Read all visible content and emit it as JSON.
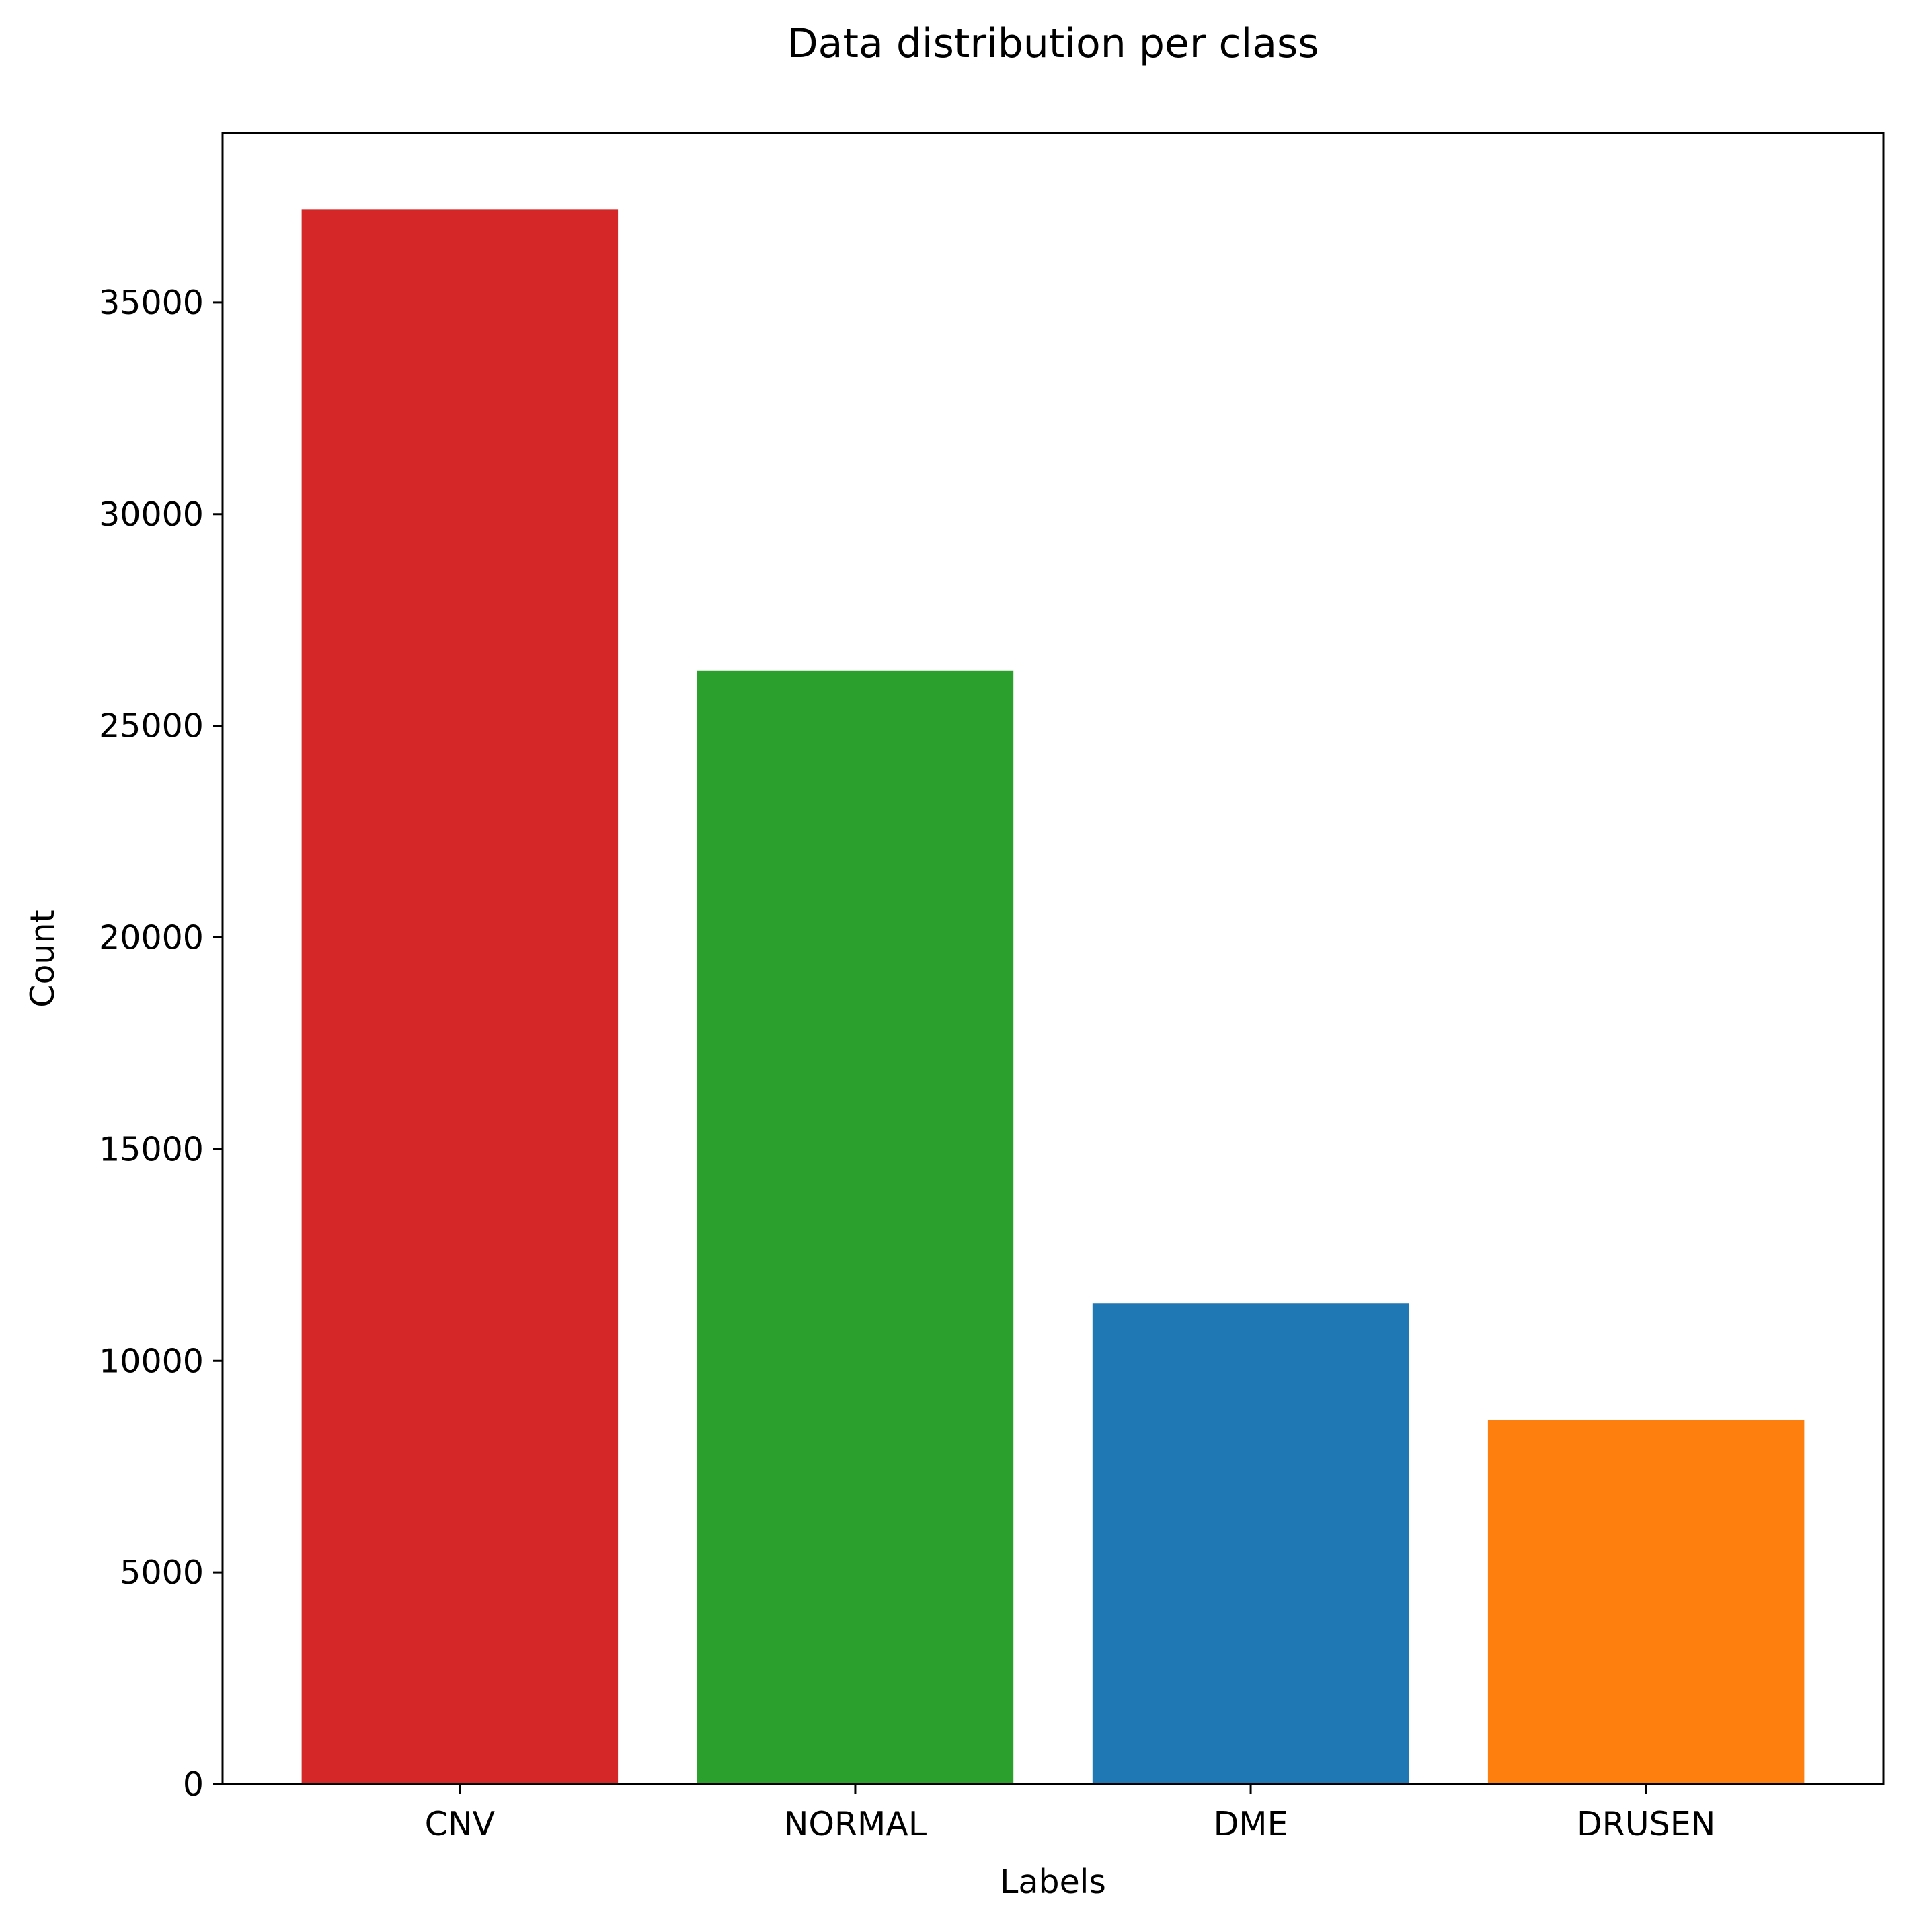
{
  "chart_data": {
    "type": "bar",
    "title": "Data distribution per class",
    "xlabel": "Labels",
    "ylabel": "Count",
    "categories": [
      "CNV",
      "NORMAL",
      "DME",
      "DRUSEN"
    ],
    "values": [
      37200,
      26300,
      11350,
      8600
    ],
    "colors": [
      "#d62728",
      "#2ca02c",
      "#1f77b4",
      "#ff7f0e"
    ],
    "ylim": [
      0,
      39000
    ],
    "yticks": [
      0,
      5000,
      10000,
      15000,
      20000,
      25000,
      30000,
      35000
    ],
    "ytick_labels": [
      "0",
      "5000",
      "10000",
      "15000",
      "20000",
      "25000",
      "30000",
      "35000"
    ],
    "grid": false,
    "legend": "none"
  }
}
